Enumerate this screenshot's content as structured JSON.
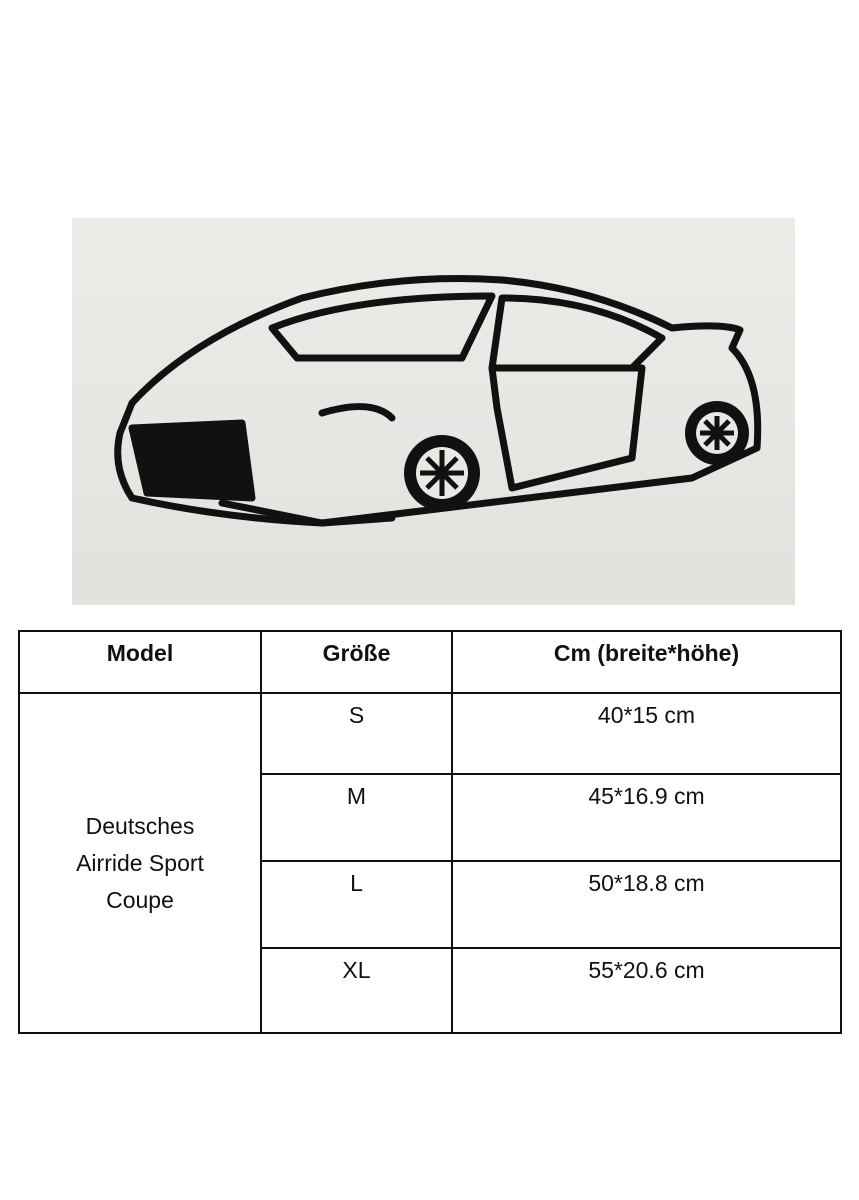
{
  "photo": {
    "subject": "car-silhouette-wall-art"
  },
  "table": {
    "headers": [
      "Model",
      "Größe",
      "Cm (breite*höhe)"
    ],
    "model": "Deutsches\nAirride Sport\nCoupe",
    "rows": [
      {
        "size": "S",
        "dims": "40*15 cm"
      },
      {
        "size": "M",
        "dims": "45*16.9 cm"
      },
      {
        "size": "L",
        "dims": "50*18.8 cm"
      },
      {
        "size": "XL",
        "dims": "55*20.6 cm"
      }
    ]
  }
}
